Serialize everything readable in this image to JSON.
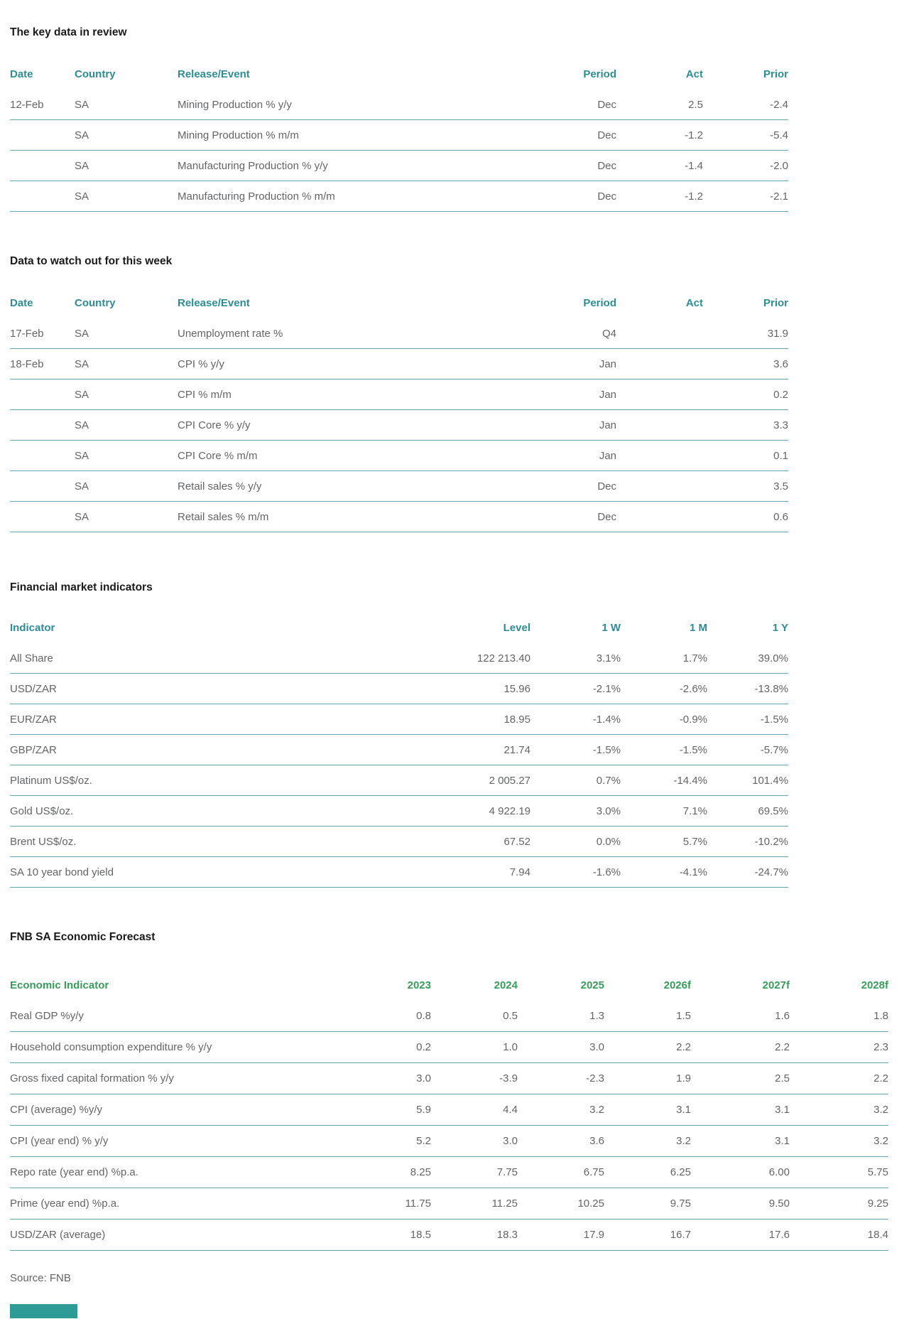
{
  "colors": {
    "header_teal": "#2E8C96",
    "header_green": "#389C5A",
    "rule": "#5FA9AE",
    "body_text": "#636466",
    "title_text": "#1A1A1A",
    "accent_block": "#2E9B96"
  },
  "source_note": "Source: FNB",
  "sections": [
    {
      "id": "key-data-review",
      "title": "The key data in review",
      "table": {
        "columns": [
          "Date",
          "Country",
          "Release/Event",
          "Period",
          "Act",
          "Prior"
        ],
        "rows": [
          [
            "12-Feb",
            "SA",
            "Mining Production % y/y",
            "Dec",
            "2.5",
            "-2.4"
          ],
          [
            "",
            "SA",
            "Mining Production % m/m",
            "Dec",
            "-1.2",
            "-5.4"
          ],
          [
            "",
            "SA",
            "Manufacturing Production % y/y",
            "Dec",
            "-1.4",
            "-2.0"
          ],
          [
            "",
            "SA",
            "Manufacturing Production % m/m",
            "Dec",
            "-1.2",
            "-2.1"
          ]
        ]
      }
    },
    {
      "id": "data-to-watch",
      "title": "Data to watch out for this week",
      "table": {
        "columns": [
          "Date",
          "Country",
          "Release/Event",
          "Period",
          "Act",
          "Prior"
        ],
        "rows": [
          [
            "17-Feb",
            "SA",
            "Unemployment rate %",
            "Q4",
            "",
            "31.9"
          ],
          [
            "18-Feb",
            "SA",
            "CPI % y/y",
            "Jan",
            "",
            "3.6"
          ],
          [
            "",
            "SA",
            "CPI % m/m",
            "Jan",
            "",
            "0.2"
          ],
          [
            "",
            "SA",
            "CPI Core % y/y",
            "Jan",
            "",
            "3.3"
          ],
          [
            "",
            "SA",
            "CPI Core % m/m",
            "Jan",
            "",
            "0.1"
          ],
          [
            "",
            "SA",
            "Retail sales % y/y",
            "Dec",
            "",
            "3.5"
          ],
          [
            "",
            "SA",
            "Retail sales % m/m",
            "Dec",
            "",
            "0.6"
          ]
        ]
      }
    },
    {
      "id": "financial-market-indicators",
      "title": "Financial market indicators",
      "table": {
        "columns": [
          "Indicator",
          "Level",
          "1 W",
          "1 M",
          "1 Y"
        ],
        "rows": [
          [
            "All Share",
            "122 213.40",
            "3.1%",
            "1.7%",
            "39.0%"
          ],
          [
            "USD/ZAR",
            "15.96",
            "-2.1%",
            "-2.6%",
            "-13.8%"
          ],
          [
            "EUR/ZAR",
            "18.95",
            "-1.4%",
            "-0.9%",
            "-1.5%"
          ],
          [
            "GBP/ZAR",
            "21.74",
            "-1.5%",
            "-1.5%",
            "-5.7%"
          ],
          [
            "Platinum US$/oz.",
            "2 005.27",
            "0.7%",
            "-14.4%",
            "101.4%"
          ],
          [
            "Gold US$/oz.",
            "4 922.19",
            "3.0%",
            "7.1%",
            "69.5%"
          ],
          [
            "Brent US$/oz.",
            "67.52",
            "0.0%",
            "5.7%",
            "-10.2%"
          ],
          [
            "SA 10 year bond yield",
            "7.94",
            "-1.6%",
            "-4.1%",
            "-24.7%"
          ]
        ]
      }
    },
    {
      "id": "fnb-sa-economic-forecast",
      "title": "FNB SA Economic Forecast",
      "table": {
        "columns": [
          "Economic Indicator",
          "2023",
          "2024",
          "2025",
          "2026f",
          "2027f",
          "2028f"
        ],
        "rows": [
          [
            "Real GDP %y/y",
            "0.8",
            "0.5",
            "1.3",
            "1.5",
            "1.6",
            "1.8"
          ],
          [
            "Household consumption expenditure % y/y",
            "0.2",
            "1.0",
            "3.0",
            "2.2",
            "2.2",
            "2.3"
          ],
          [
            "Gross fixed capital formation % y/y",
            "3.0",
            "-3.9",
            "-2.3",
            "1.9",
            "2.5",
            "2.2"
          ],
          [
            "CPI (average) %y/y",
            "5.9",
            "4.4",
            "3.2",
            "3.1",
            "3.1",
            "3.2"
          ],
          [
            "CPI (year end) % y/y",
            "5.2",
            "3.0",
            "3.6",
            "3.2",
            "3.1",
            "3.2"
          ],
          [
            "Repo rate (year end) %p.a.",
            "8.25",
            "7.75",
            "6.75",
            "6.25",
            "6.00",
            "5.75"
          ],
          [
            "Prime (year end) %p.a.",
            "11.75",
            "11.25",
            "10.25",
            "9.75",
            "9.50",
            "9.25"
          ],
          [
            "USD/ZAR (average)",
            "18.5",
            "18.3",
            "17.9",
            "16.7",
            "17.6",
            "18.4"
          ]
        ]
      }
    }
  ]
}
